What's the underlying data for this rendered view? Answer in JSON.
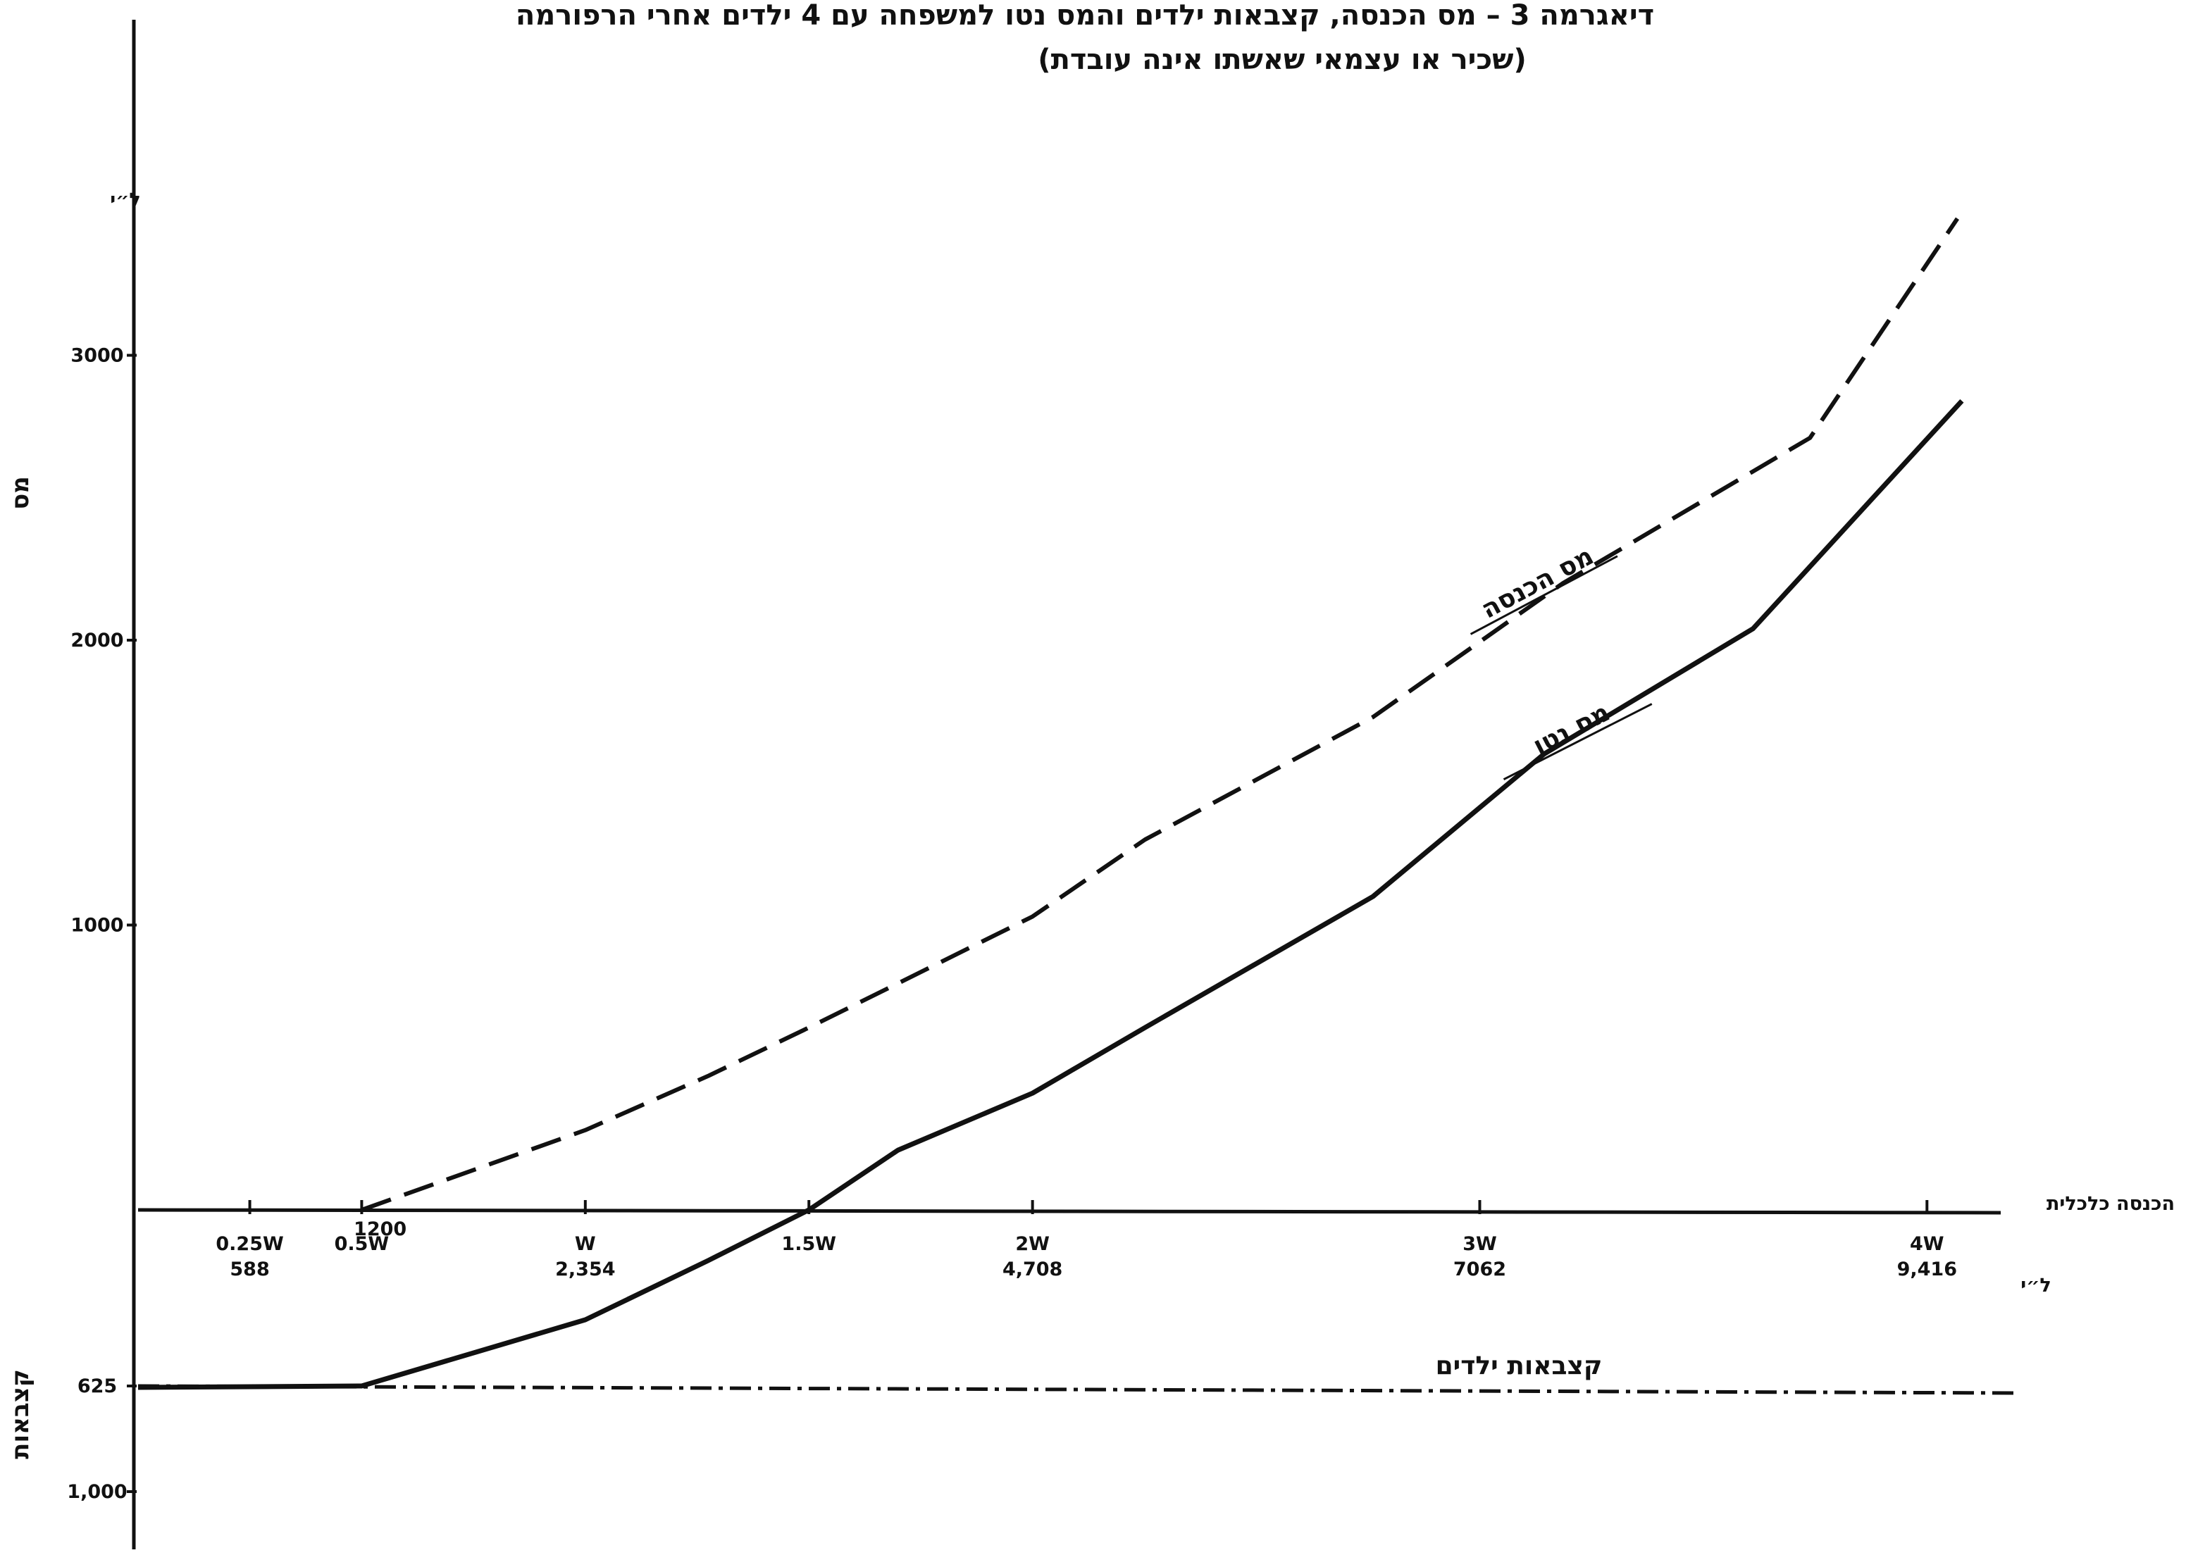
{
  "chart_data": {
    "type": "line",
    "title": "דיאגרמה 3 – מס הכנסה, קצבאות ילדים והמס נטו למשפחה עם 4 ילדים אחרי הרפורמה",
    "subtitle": "(שכיר או עצמאי שאשתו אינה עובדת)",
    "ylabel": "מס",
    "ylabel_unit": "ל״י",
    "ylabel_negative": "קצבאות",
    "xlabel": "הכנסה כלכלית",
    "xlabel_unit": "ל״י",
    "xlim": [
      0,
      10000
    ],
    "ylim": [
      -1000,
      3550
    ],
    "grid": false,
    "y_ticks": [
      {
        "value": 3000,
        "label": "3000"
      },
      {
        "value": 2000,
        "label": "2000"
      },
      {
        "value": 1000,
        "label": "1000"
      },
      {
        "value": -625,
        "label": "625"
      },
      {
        "value": -1000,
        "label": "1,000"
      }
    ],
    "x_ticks": [
      {
        "value": 588,
        "label": "0.25W",
        "sublabel": "588"
      },
      {
        "value": 1177,
        "label": "0.5W",
        "sublabel": ""
      },
      {
        "value": 2354,
        "label": "W",
        "sublabel": "2,354"
      },
      {
        "value": 3531,
        "label": "1.5W",
        "sublabel": ""
      },
      {
        "value": 4708,
        "label": "2W",
        "sublabel": "4,708"
      },
      {
        "value": 7062,
        "label": "3W",
        "sublabel": "7062"
      },
      {
        "value": 9416,
        "label": "4W",
        "sublabel": "9,416"
      }
    ],
    "annotations": [
      {
        "text": "1200",
        "x": 1200,
        "y": 0
      }
    ],
    "series": [
      {
        "name": "מס הכנסה",
        "style": "dashed",
        "x": [
          1177,
          2354,
          3000,
          3531,
          4708,
          5300,
          6500,
          7500,
          8800,
          9576
        ],
        "y": [
          0,
          280,
          470,
          640,
          1030,
          1300,
          1730,
          2200,
          2710,
          3480
        ]
      },
      {
        "name": "מס נטו",
        "style": "solid",
        "x": [
          0,
          1177,
          2354,
          3000,
          3531,
          4000,
          4708,
          5300,
          6500,
          7400,
          8500,
          9600
        ],
        "y": [
          -630,
          -625,
          -390,
          -180,
          0,
          210,
          410,
          640,
          1100,
          1600,
          2040,
          2840
        ]
      },
      {
        "name": "קצבאות ילדים",
        "style": "dash-dot",
        "x": [
          0,
          9900
        ],
        "y": [
          -625,
          -650
        ]
      }
    ]
  }
}
